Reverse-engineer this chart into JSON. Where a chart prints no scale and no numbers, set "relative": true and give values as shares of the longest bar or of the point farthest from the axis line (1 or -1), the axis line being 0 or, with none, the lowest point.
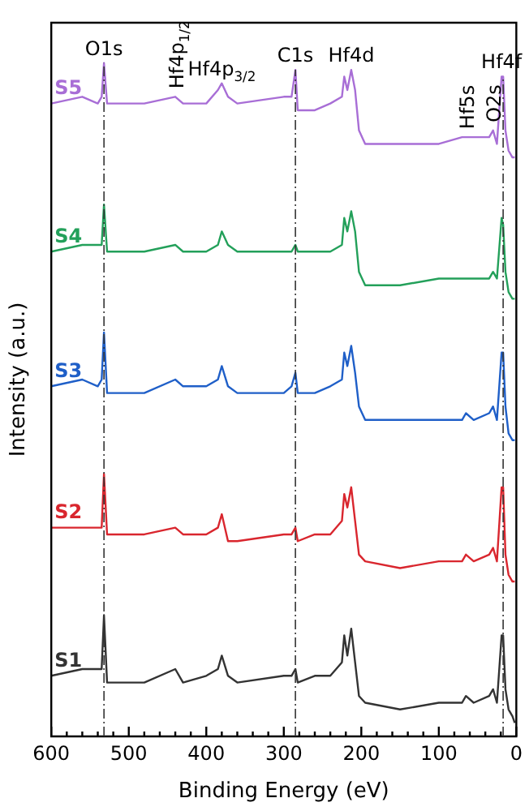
{
  "chart_data": {
    "type": "line",
    "relative": true,
    "marker": "none",
    "xlabel": "Binding Energy (eV)",
    "ylabel": "Intensity (a.u.)",
    "xlim": [
      600,
      0
    ],
    "xticks": [
      600,
      {
        "value": 580,
        "label": null
      },
      {
        "value": 560,
        "label": null
      },
      {
        "value": 540,
        "label": null
      },
      {
        "value": 520,
        "label": null
      },
      500,
      {
        "value": 480,
        "label": null
      },
      {
        "value": 460,
        "label": null
      },
      {
        "value": 440,
        "label": null
      },
      {
        "value": 420,
        "label": null
      },
      400,
      {
        "value": 380,
        "label": null
      },
      {
        "value": 360,
        "label": null
      },
      {
        "value": 340,
        "label": null
      },
      {
        "value": 320,
        "label": null
      },
      300,
      {
        "value": 280,
        "label": null
      },
      {
        "value": 260,
        "label": null
      },
      {
        "value": 240,
        "label": null
      },
      {
        "value": 220,
        "label": null
      },
      200,
      {
        "value": 180,
        "label": null
      },
      {
        "value": 160,
        "label": null
      },
      {
        "value": 140,
        "label": null
      },
      {
        "value": 120,
        "label": null
      },
      100,
      {
        "value": 80,
        "label": null
      },
      {
        "value": 60,
        "label": null
      },
      {
        "value": 40,
        "label": null
      },
      {
        "value": 20,
        "label": null
      },
      0
    ],
    "x": [
      600,
      560,
      540,
      535,
      532,
      528,
      520,
      480,
      440,
      430,
      400,
      385,
      380,
      372,
      360,
      300,
      290,
      285,
      282,
      260,
      240,
      225,
      222,
      218,
      213,
      208,
      203,
      195,
      150,
      100,
      70,
      65,
      55,
      35,
      30,
      25,
      19,
      17,
      14,
      10,
      5,
      2
    ],
    "series": [
      {
        "name": "S5",
        "color": "#a86ed6",
        "values": [
          0.94,
          0.95,
          0.94,
          0.95,
          1,
          0.94,
          0.94,
          0.94,
          0.95,
          0.94,
          0.94,
          0.96,
          0.97,
          0.95,
          0.94,
          0.95,
          0.95,
          0.99,
          0.93,
          0.93,
          0.94,
          0.95,
          0.98,
          0.96,
          0.99,
          0.96,
          0.9,
          0.88,
          0.88,
          0.88,
          0.89,
          0.89,
          0.89,
          0.89,
          0.9,
          0.88,
          0.98,
          0.98,
          0.9,
          0.87,
          0.86,
          0.86
        ]
      },
      {
        "name": "S4",
        "color": "#23a05a",
        "values": [
          0.72,
          0.73,
          0.73,
          0.73,
          0.79,
          0.72,
          0.72,
          0.72,
          0.73,
          0.72,
          0.72,
          0.73,
          0.75,
          0.73,
          0.72,
          0.72,
          0.72,
          0.73,
          0.72,
          0.72,
          0.72,
          0.73,
          0.77,
          0.75,
          0.78,
          0.75,
          0.69,
          0.67,
          0.67,
          0.68,
          0.68,
          0.68,
          0.68,
          0.68,
          0.69,
          0.68,
          0.77,
          0.76,
          0.69,
          0.66,
          0.65,
          0.65
        ]
      },
      {
        "name": "S3",
        "color": "#1f5fc8",
        "values": [
          0.52,
          0.53,
          0.52,
          0.53,
          0.6,
          0.51,
          0.51,
          0.51,
          0.53,
          0.52,
          0.52,
          0.53,
          0.55,
          0.52,
          0.51,
          0.51,
          0.52,
          0.54,
          0.51,
          0.51,
          0.52,
          0.53,
          0.57,
          0.55,
          0.58,
          0.54,
          0.49,
          0.47,
          0.47,
          0.47,
          0.47,
          0.48,
          0.47,
          0.48,
          0.49,
          0.47,
          0.57,
          0.57,
          0.49,
          0.45,
          0.44,
          0.44
        ]
      },
      {
        "name": "S2",
        "color": "#d9262e",
        "values": [
          0.31,
          0.31,
          0.31,
          0.31,
          0.39,
          0.3,
          0.3,
          0.3,
          0.31,
          0.3,
          0.3,
          0.31,
          0.33,
          0.29,
          0.29,
          0.3,
          0.3,
          0.31,
          0.29,
          0.3,
          0.3,
          0.32,
          0.36,
          0.34,
          0.37,
          0.32,
          0.27,
          0.26,
          0.25,
          0.26,
          0.26,
          0.27,
          0.26,
          0.27,
          0.28,
          0.26,
          0.37,
          0.37,
          0.27,
          0.24,
          0.23,
          0.23
        ]
      },
      {
        "name": "S1",
        "color": "#333333",
        "values": [
          0.09,
          0.1,
          0.1,
          0.1,
          0.18,
          0.08,
          0.08,
          0.08,
          0.1,
          0.08,
          0.09,
          0.1,
          0.12,
          0.09,
          0.08,
          0.09,
          0.09,
          0.1,
          0.08,
          0.09,
          0.09,
          0.11,
          0.15,
          0.12,
          0.16,
          0.11,
          0.06,
          0.05,
          0.04,
          0.05,
          0.05,
          0.06,
          0.05,
          0.06,
          0.07,
          0.05,
          0.15,
          0.15,
          0.07,
          0.04,
          0.03,
          0.02
        ]
      }
    ],
    "ref_lines": [
      {
        "axis": "x",
        "value": 532,
        "color": "#333333",
        "line_style": "dashed"
      },
      {
        "axis": "x",
        "value": 285,
        "color": "#333333",
        "line_style": "dashed"
      },
      {
        "axis": "x",
        "value": 17,
        "color": "#333333",
        "line_style": "dashed"
      }
    ],
    "annotations": [
      {
        "text": "O1s",
        "x": 532,
        "y": 1
      },
      {
        "text": "Hf4p$_{1/2}$",
        "x": 440,
        "y": 0.95
      },
      {
        "text": "Hf4p$_{3/2}$",
        "x": 380,
        "y": 0.97
      },
      {
        "text": "C1s",
        "x": 285,
        "y": 0.99
      },
      {
        "text": "Hf4d",
        "x": 213,
        "y": 0.99
      },
      {
        "text": "Hf5s",
        "x": 65,
        "y": 0.89
      },
      {
        "text": "O2s",
        "x": 30,
        "y": 0.9
      },
      {
        "text": "Hf4f",
        "x": 19,
        "y": 0.98
      }
    ]
  }
}
